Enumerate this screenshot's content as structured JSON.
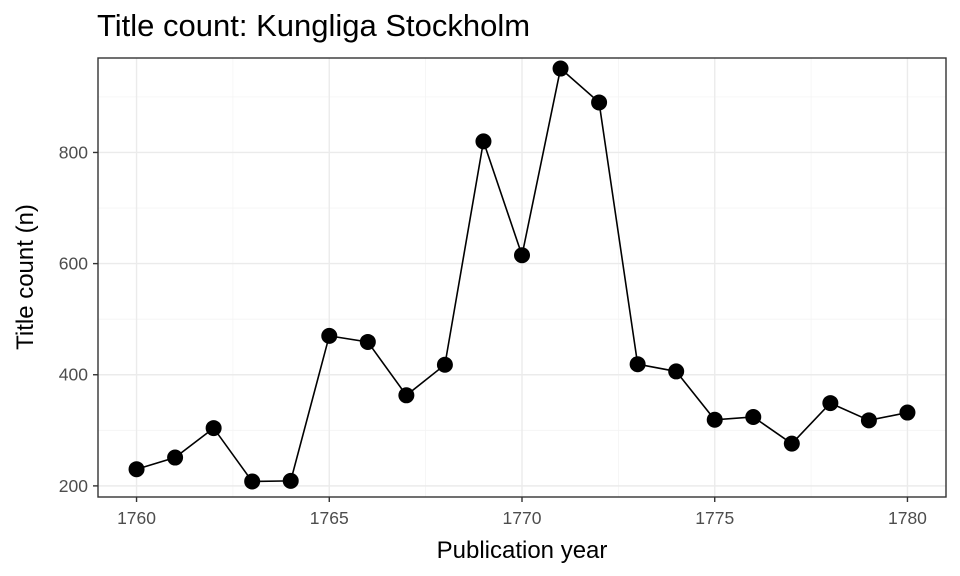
{
  "chart_data": {
    "type": "line",
    "title": "Title count: Kungliga Stockholm",
    "xlabel": "Publication year",
    "ylabel": "Title count (n)",
    "x": [
      1760,
      1761,
      1762,
      1763,
      1764,
      1765,
      1766,
      1767,
      1768,
      1769,
      1770,
      1771,
      1772,
      1773,
      1774,
      1775,
      1776,
      1777,
      1778,
      1779,
      1780
    ],
    "series": [
      {
        "values": [
          230,
          251,
          304,
          208,
          209,
          470,
          459,
          363,
          418,
          820,
          615,
          951,
          890,
          419,
          406,
          319,
          324,
          276,
          349,
          318,
          332
        ]
      }
    ],
    "xlim": [
      1759,
      1781
    ],
    "ylim": [
      180,
      970
    ],
    "xticks": [
      1760,
      1765,
      1770,
      1775,
      1780
    ],
    "yticks": [
      200,
      400,
      600,
      800
    ],
    "xtick_labels": [
      "1760",
      "1765",
      "1770",
      "1775",
      "1780"
    ],
    "ytick_labels": [
      "200",
      "400",
      "600",
      "800"
    ],
    "grid": true,
    "markers": "filled-circle",
    "colors": {
      "series": "#000000",
      "grid": "#ebebeb",
      "panel_border": "#333333",
      "tick_text": "#4d4d4d"
    }
  }
}
